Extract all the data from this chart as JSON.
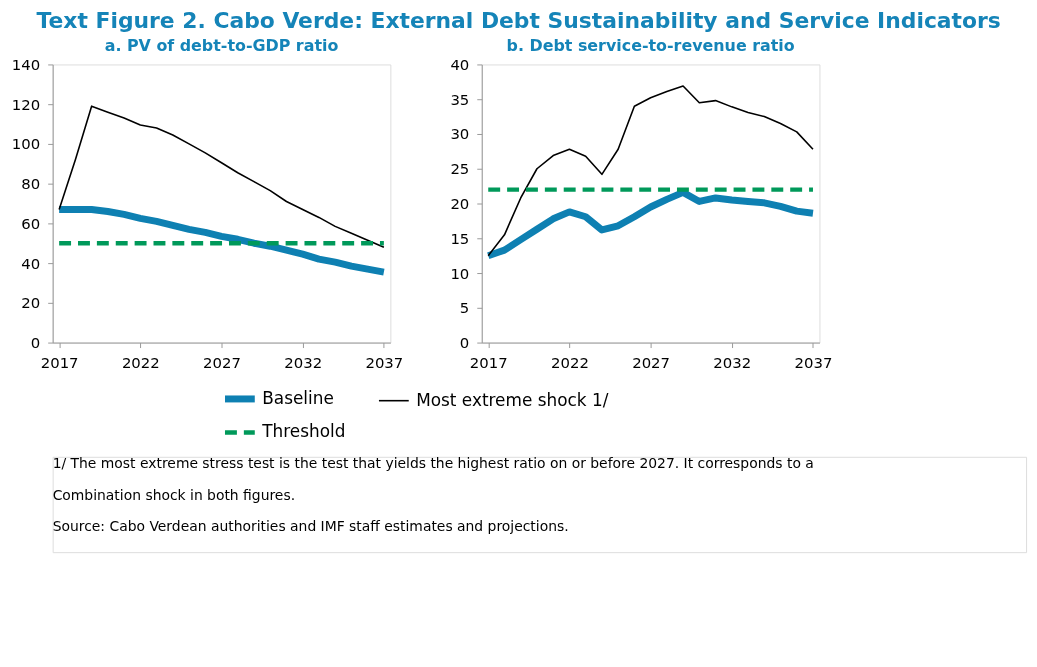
{
  "chart_data": [
    {
      "type": "line",
      "title": "a. PV of debt-to-GDP ratio",
      "annotations": [
        "Text Figure 2. Cabo Verde: External Debt Sustainability and Service Indicators",
        "1/ The most extreme stress test is the test that yields the highest ratio on or before 2027. It corresponds to a Combination shock in both figures.",
        "Source: Cabo Verdean authorities and IMF staff estimates and projections."
      ],
      "x": [
        2017,
        2018,
        2019,
        2020,
        2021,
        2022,
        2023,
        2024,
        2025,
        2026,
        2027,
        2028,
        2029,
        2030,
        2031,
        2032,
        2033,
        2034,
        2035,
        2036,
        2037
      ],
      "series": [
        {
          "name": "Baseline",
          "color": "#0e80b2",
          "line_style": "solid",
          "values": [
            67,
            67,
            67,
            66,
            64.5,
            62.5,
            61,
            59,
            57,
            55.5,
            53.5,
            52,
            50,
            48.5,
            46.5,
            44.5,
            42,
            40.5,
            38.5,
            37,
            35.5
          ]
        },
        {
          "name": "Most extreme shock  1/",
          "color": "#000000",
          "line_style": "solid",
          "values": [
            67,
            92,
            119,
            116,
            113,
            109.5,
            108,
            104.5,
            100,
            95.5,
            90.5,
            85.5,
            81,
            76.5,
            71,
            67,
            63,
            58.5,
            55,
            51.5,
            48
          ]
        },
        {
          "name": "Threshold",
          "color": "#00995a",
          "line_style": "dashed",
          "values": [
            50,
            50,
            50,
            50,
            50,
            50,
            50,
            50,
            50,
            50,
            50,
            50,
            50,
            50,
            50,
            50,
            50,
            50,
            50,
            50,
            50
          ]
        }
      ],
      "xlim": [
        2016.6,
        2037.4
      ],
      "xticks": [
        2017,
        2022,
        2027,
        2032,
        2037
      ],
      "ylim": [
        0,
        140
      ],
      "yticks": [
        0,
        20,
        40,
        60,
        80,
        100,
        120,
        140
      ],
      "grid": false,
      "legend": "bottom",
      "marker": "none"
    },
    {
      "type": "line",
      "title": "b. Debt service-to-revenue ratio",
      "x": [
        2017,
        2018,
        2019,
        2020,
        2021,
        2022,
        2023,
        2024,
        2025,
        2026,
        2027,
        2028,
        2029,
        2030,
        2031,
        2032,
        2033,
        2034,
        2035,
        2036,
        2037
      ],
      "series": [
        {
          "name": "Baseline",
          "color": "#0e80b2",
          "line_style": "solid",
          "values": [
            12.5,
            13.3,
            14.8,
            16.3,
            17.8,
            18.8,
            18.1,
            16.2,
            16.8,
            18.1,
            19.5,
            20.6,
            21.6,
            20.3,
            20.8,
            20.5,
            20.3,
            20.1,
            19.6,
            18.9,
            18.6
          ]
        },
        {
          "name": "Most extreme shock  1/",
          "color": "#000000",
          "line_style": "solid",
          "values": [
            12.5,
            15.5,
            20.8,
            25,
            26.9,
            27.8,
            26.8,
            24.2,
            27.8,
            34,
            35.2,
            36.1,
            36.9,
            34.5,
            34.8,
            33.9,
            33.1,
            32.5,
            31.5,
            30.3,
            27.8
          ]
        },
        {
          "name": "Threshold",
          "color": "#00995a",
          "line_style": "dashed",
          "values": [
            22,
            22,
            22,
            22,
            22,
            22,
            22,
            22,
            22,
            22,
            22,
            22,
            22,
            22,
            22,
            22,
            22,
            22,
            22,
            22,
            22
          ]
        }
      ],
      "xlim": [
        2016.6,
        2037.4
      ],
      "xticks": [
        2017,
        2022,
        2027,
        2032,
        2037
      ],
      "ylim": [
        0,
        40
      ],
      "yticks": [
        0,
        5,
        10,
        15,
        20,
        25,
        30,
        35,
        40
      ],
      "grid": false,
      "legend": "bottom",
      "marker": "none"
    }
  ]
}
